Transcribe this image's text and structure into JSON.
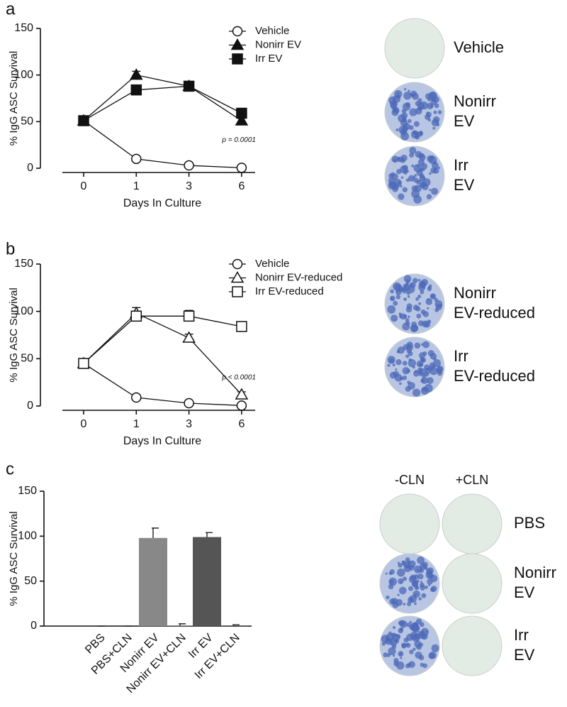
{
  "chart_data": [
    {
      "type": "line",
      "label": "a",
      "ylabel": "% IgG ASC Survival",
      "xlabel": "Days In Culture",
      "categories": [
        "0",
        "1",
        "3",
        "6"
      ],
      "ylim": [
        0,
        150
      ],
      "yticks": [
        0,
        50,
        100,
        150
      ],
      "annotation": "p = 0.0001",
      "series": [
        {
          "name": "Vehicle",
          "color": "#111111",
          "marker": "circle",
          "filled": false,
          "values": [
            51,
            10,
            3,
            0.5
          ],
          "errors": [
            2,
            1,
            1,
            0.5
          ]
        },
        {
          "name": "Nonirr EV",
          "color": "#111111",
          "marker": "triangle",
          "filled": true,
          "values": [
            51,
            100,
            88,
            51
          ],
          "errors": [
            3,
            4,
            5,
            3
          ]
        },
        {
          "name": "Irr EV",
          "color": "#111111",
          "marker": "square",
          "filled": true,
          "values": [
            51,
            84,
            88,
            59
          ],
          "errors": [
            3,
            5,
            3,
            4
          ]
        }
      ]
    },
    {
      "type": "line",
      "label": "b",
      "ylabel": "% IgG ASC Survival",
      "xlabel": "Days In Culture",
      "categories": [
        "0",
        "1",
        "3",
        "6"
      ],
      "ylim": [
        0,
        150
      ],
      "yticks": [
        0,
        50,
        100,
        150
      ],
      "annotation": "p < 0.0001",
      "series": [
        {
          "name": "Vehicle",
          "color": "#111111",
          "marker": "circle",
          "filled": false,
          "values": [
            45,
            9,
            3,
            0.5
          ],
          "errors": [
            2,
            1,
            1,
            0.5
          ]
        },
        {
          "name": "Nonirr EV-reduced",
          "color": "#111111",
          "marker": "triangle",
          "filled": false,
          "values": [
            45,
            98,
            72,
            12
          ],
          "errors": [
            3,
            6,
            4,
            3
          ]
        },
        {
          "name": "Irr EV-reduced",
          "color": "#111111",
          "marker": "square",
          "filled": false,
          "values": [
            45,
            95,
            95,
            84
          ],
          "errors": [
            2,
            3,
            6,
            3
          ]
        }
      ]
    },
    {
      "type": "bar",
      "label": "c",
      "ylabel": "% IgG ASC Survival",
      "categories": [
        "PBS",
        "PBS+CLN",
        "Nonirr EV",
        "Nonirr EV+CLN",
        "Irr EV",
        "Irr EV+CLN"
      ],
      "values": [
        0,
        0,
        98,
        0.5,
        99,
        0.5
      ],
      "errors": [
        0,
        0,
        11,
        2,
        5,
        1
      ],
      "colors": [
        "#888888",
        "#888888",
        "#888888",
        "#888888",
        "#555555",
        "#555555"
      ],
      "ylim": [
        0,
        150
      ],
      "yticks": [
        0,
        50,
        100,
        150
      ]
    }
  ],
  "dish_panels": [
    {
      "labels": [
        [
          "Vehicle"
        ],
        [
          "Nonirr",
          "EV"
        ],
        [
          "Irr",
          "EV"
        ]
      ]
    },
    {
      "labels": [
        [
          "Nonirr",
          "EV-reduced"
        ],
        [
          "Irr",
          "EV-reduced"
        ]
      ]
    },
    {
      "columns": [
        "-CLN",
        "+CLN"
      ],
      "labels": [
        [
          "PBS"
        ],
        [
          "Nonirr",
          "EV"
        ],
        [
          "Irr",
          "EV"
        ]
      ]
    }
  ]
}
